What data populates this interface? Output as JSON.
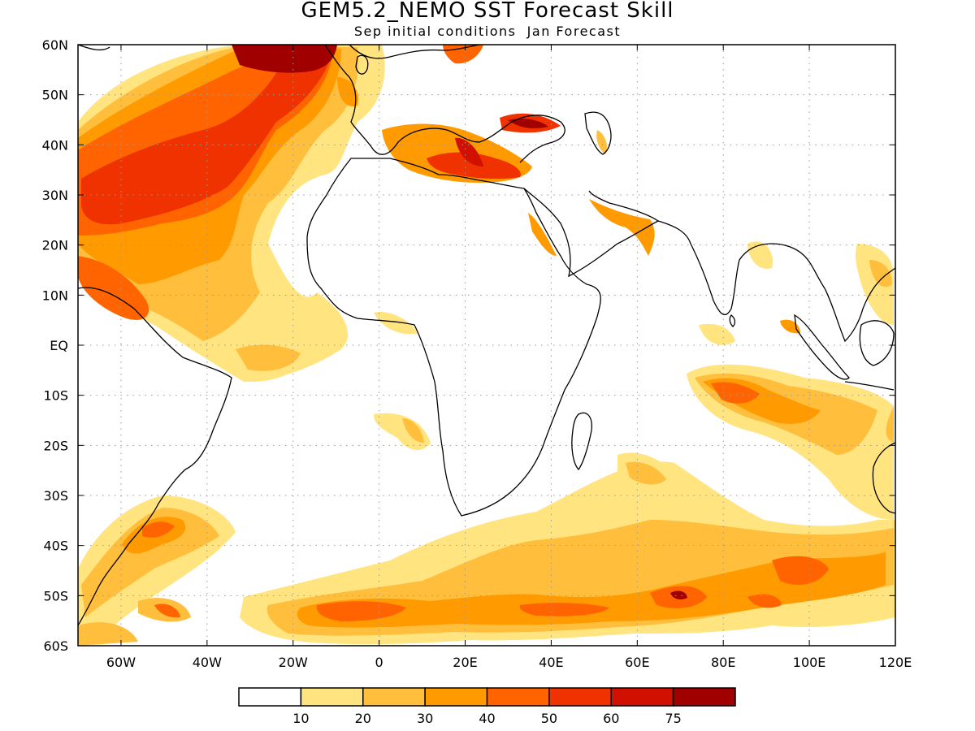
{
  "title": "GEM5.2_NEMO SST Forecast Skill",
  "subtitle": "Sep initial conditions  Jan Forecast",
  "map": {
    "lon_range": [
      -70,
      120
    ],
    "lat_range": [
      -60,
      60
    ],
    "lat_ticks": [
      {
        "lat": 60,
        "label": "60N"
      },
      {
        "lat": 50,
        "label": "50N"
      },
      {
        "lat": 40,
        "label": "40N"
      },
      {
        "lat": 30,
        "label": "30N"
      },
      {
        "lat": 20,
        "label": "20N"
      },
      {
        "lat": 10,
        "label": "10N"
      },
      {
        "lat": 0,
        "label": "EQ"
      },
      {
        "lat": -10,
        "label": "10S"
      },
      {
        "lat": -20,
        "label": "20S"
      },
      {
        "lat": -30,
        "label": "30S"
      },
      {
        "lat": -40,
        "label": "40S"
      },
      {
        "lat": -50,
        "label": "50S"
      },
      {
        "lat": -60,
        "label": "60S"
      }
    ],
    "lon_ticks": [
      {
        "lon": -60,
        "label": "60W"
      },
      {
        "lon": -40,
        "label": "40W"
      },
      {
        "lon": -20,
        "label": "20W"
      },
      {
        "lon": 0,
        "label": "0"
      },
      {
        "lon": 20,
        "label": "20E"
      },
      {
        "lon": 40,
        "label": "40E"
      },
      {
        "lon": 60,
        "label": "60E"
      },
      {
        "lon": 80,
        "label": "80E"
      },
      {
        "lon": 100,
        "label": "100E"
      },
      {
        "lon": 120,
        "label": "120E"
      }
    ],
    "grid": true
  },
  "colorbar": {
    "boundaries": [
      "10",
      "20",
      "30",
      "40",
      "50",
      "60",
      "75"
    ],
    "colors": [
      "#ffffff",
      "#ffe480",
      "#ffbe3c",
      "#ff9a00",
      "#ff6400",
      "#ef3200",
      "#d21000",
      "#a00000"
    ]
  }
}
